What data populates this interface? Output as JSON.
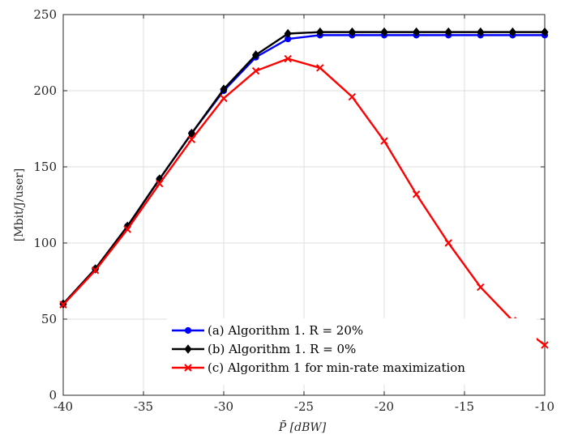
{
  "chart_data": {
    "type": "line",
    "xlabel": "P̄ [dBW]",
    "ylabel": "[Mbit/J/user]",
    "xlim": [
      -40,
      -10
    ],
    "ylim": [
      0,
      250
    ],
    "xticks": [
      -40,
      -35,
      -30,
      -25,
      -20,
      -15,
      -10
    ],
    "yticks": [
      0,
      50,
      100,
      150,
      200,
      250
    ],
    "xtick_labels": [
      "-40",
      "-35",
      "-30",
      "-25",
      "-20",
      "-15",
      "-10"
    ],
    "ytick_labels": [
      "0",
      "50",
      "100",
      "150",
      "200",
      "250"
    ],
    "grid": true,
    "legend_position": "bottom-right",
    "x": [
      -40,
      -38,
      -36,
      -34,
      -32,
      -30,
      -28,
      -26,
      -24,
      -22,
      -20,
      -18,
      -16,
      -14,
      -12,
      -10
    ],
    "series": [
      {
        "name": "(a) Algorithm 1. R = 20%",
        "color": "#0000ff",
        "marker": "circle",
        "values": [
          60,
          83,
          111,
          142,
          172,
          200,
          222,
          234,
          236.5,
          236.5,
          236.5,
          236.5,
          236.5,
          236.5,
          236.5,
          236.5
        ]
      },
      {
        "name": "(b) Algorithm 1. R = 0%",
        "color": "#000000",
        "marker": "diamond",
        "values": [
          60,
          83,
          111,
          142,
          172,
          201,
          223.5,
          237.5,
          238.5,
          238.5,
          238.5,
          238.5,
          238.5,
          238.5,
          238.5,
          238.5
        ]
      },
      {
        "name": "(c) Algorithm 1 for min-rate maximization",
        "color": "#ff0000",
        "marker": "x",
        "values": [
          59.5,
          82,
          109,
          139,
          168,
          195,
          213,
          221,
          215,
          196,
          167,
          132,
          100,
          71,
          49,
          33
        ]
      }
    ]
  }
}
